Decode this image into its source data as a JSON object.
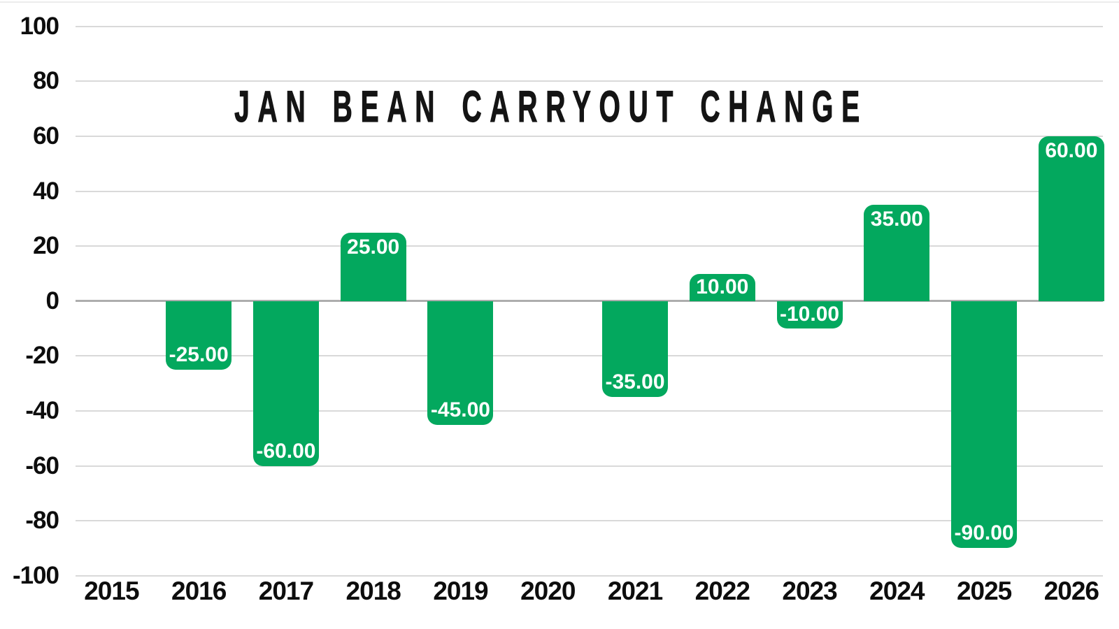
{
  "chart_data": {
    "type": "bar",
    "title": "JAN BEAN CARRYOUT CHANGE",
    "categories": [
      "2015",
      "2016",
      "2017",
      "2018",
      "2019",
      "2020",
      "2021",
      "2022",
      "2023",
      "2024",
      "2025",
      "2026"
    ],
    "values": [
      null,
      -25,
      -60,
      25,
      -45,
      null,
      -35,
      10,
      -10,
      35,
      -90,
      60
    ],
    "data_labels": [
      "",
      "-25.00",
      "-60.00",
      "25.00",
      "-45.00",
      "",
      "-35.00",
      "10.00",
      "-10.00",
      "35.00",
      "-90.00",
      "60.00"
    ],
    "y_ticks": [
      100,
      80,
      60,
      40,
      20,
      0,
      -20,
      -40,
      -60,
      -80,
      -100
    ],
    "ylim": [
      -100,
      100
    ],
    "xlabel": "",
    "ylabel": "",
    "legend": "none",
    "grid": true,
    "colors": {
      "bar": "#03a85e",
      "bar_label_text": "#ffffff",
      "gridline": "#d9d9d9",
      "zero_line": "#adadad",
      "axis_text": "#0d0d0d",
      "title_text": "#141414",
      "background": "#ffffff"
    }
  }
}
